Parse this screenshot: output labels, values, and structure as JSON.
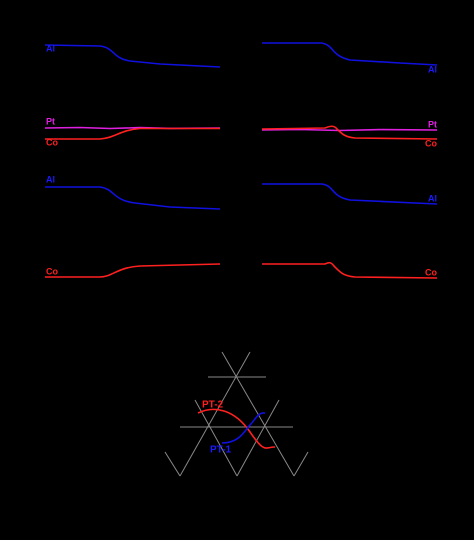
{
  "left_panel": {
    "labels": [
      "Al",
      "Pt",
      "Co",
      "Al",
      "Co"
    ]
  },
  "right_panel": {
    "labels": [
      "Al",
      "Pt",
      "Co",
      "Al",
      "Co"
    ]
  },
  "diagram": {
    "labels": [
      "PT-2",
      "PT-1"
    ]
  }
}
